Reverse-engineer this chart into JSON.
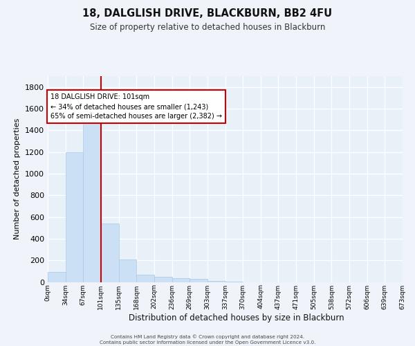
{
  "title": "18, DALGLISH DRIVE, BLACKBURN, BB2 4FU",
  "subtitle": "Size of property relative to detached houses in Blackburn",
  "xlabel": "Distribution of detached houses by size in Blackburn",
  "ylabel": "Number of detached properties",
  "bar_color": "#cce0f5",
  "bar_edge_color": "#a8c8e8",
  "background_color": "#e8f0f8",
  "grid_color": "#ffffff",
  "bin_labels": [
    "0sqm",
    "34sqm",
    "67sqm",
    "101sqm",
    "135sqm",
    "168sqm",
    "202sqm",
    "236sqm",
    "269sqm",
    "303sqm",
    "337sqm",
    "370sqm",
    "404sqm",
    "437sqm",
    "471sqm",
    "505sqm",
    "538sqm",
    "572sqm",
    "606sqm",
    "639sqm",
    "673sqm"
  ],
  "bar_values": [
    90,
    1200,
    1470,
    540,
    205,
    65,
    45,
    35,
    28,
    10,
    5,
    0,
    0,
    0,
    0,
    0,
    0,
    0,
    0,
    0
  ],
  "ylim": [
    0,
    1900
  ],
  "yticks": [
    0,
    200,
    400,
    600,
    800,
    1000,
    1200,
    1400,
    1600,
    1800
  ],
  "property_line_x": 3,
  "annotation_line1": "18 DALGLISH DRIVE: 101sqm",
  "annotation_line2": "← 34% of detached houses are smaller (1,243)",
  "annotation_line3": "65% of semi-detached houses are larger (2,382) →",
  "annotation_box_color": "#ffffff",
  "annotation_border_color": "#cc0000",
  "vline_color": "#cc0000",
  "fig_bg_color": "#f0f4fa",
  "footer_line1": "Contains HM Land Registry data © Crown copyright and database right 2024.",
  "footer_line2": "Contains public sector information licensed under the Open Government Licence v3.0."
}
